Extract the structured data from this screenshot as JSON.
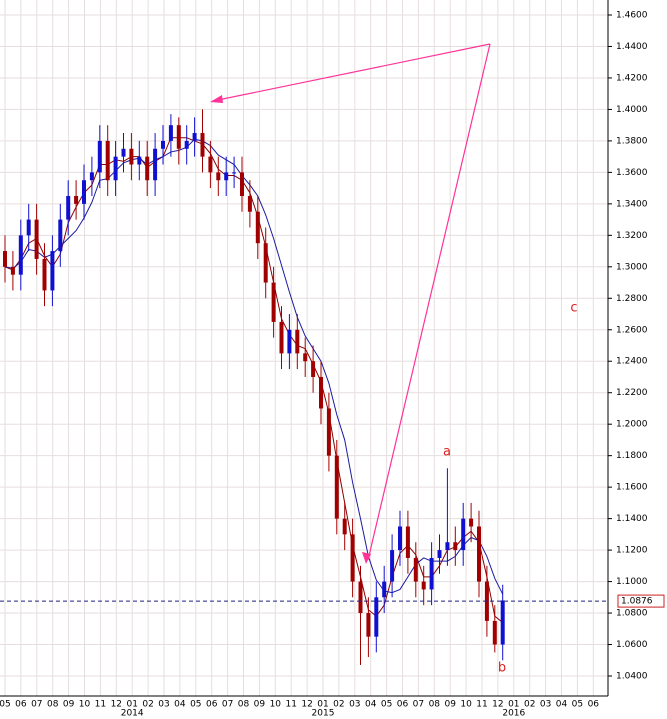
{
  "chart_data": {
    "type": "candlestick",
    "x_labels": [
      "05",
      "06",
      "07",
      "08",
      "09",
      "10",
      "11",
      "12",
      "01",
      "02",
      "03",
      "04",
      "05",
      "06",
      "07",
      "08",
      "09",
      "10",
      "11",
      "12",
      "01",
      "02",
      "03",
      "04",
      "05",
      "06",
      "07",
      "08",
      "09",
      "10",
      "11",
      "12",
      "01",
      "02",
      "03",
      "04",
      "05",
      "06"
    ],
    "year_labels": [
      "2014",
      "2015",
      "2016"
    ],
    "up_color": "#1010d0",
    "down_color": "#a00000",
    "open": [
      1.31,
      1.3,
      1.295,
      1.32,
      1.33,
      1.305,
      1.285,
      1.31,
      1.33,
      1.345,
      1.34,
      1.355,
      1.36,
      1.38,
      1.355,
      1.37,
      1.375,
      1.365,
      1.37,
      1.355,
      1.375,
      1.38,
      1.39,
      1.375,
      1.38,
      1.385,
      1.37,
      1.36,
      1.355,
      1.36,
      1.36,
      1.345,
      1.335,
      1.315,
      1.29,
      1.265,
      1.245,
      1.26,
      1.245,
      1.24,
      1.23,
      1.21,
      1.18,
      1.14,
      1.13,
      1.1,
      1.08,
      1.065,
      1.09,
      1.1,
      1.12,
      1.135,
      1.115,
      1.1,
      1.095,
      1.115,
      1.12,
      1.125,
      1.12,
      1.14,
      1.135,
      1.1,
      1.075,
      1.06
    ],
    "high": [
      1.32,
      1.31,
      1.33,
      1.34,
      1.34,
      1.315,
      1.32,
      1.34,
      1.355,
      1.355,
      1.365,
      1.37,
      1.39,
      1.39,
      1.38,
      1.385,
      1.385,
      1.38,
      1.38,
      1.385,
      1.39,
      1.397,
      1.395,
      1.39,
      1.395,
      1.4,
      1.38,
      1.37,
      1.37,
      1.37,
      1.37,
      1.355,
      1.345,
      1.325,
      1.3,
      1.275,
      1.27,
      1.27,
      1.255,
      1.25,
      1.24,
      1.22,
      1.19,
      1.15,
      1.14,
      1.11,
      1.09,
      1.1,
      1.11,
      1.13,
      1.145,
      1.145,
      1.125,
      1.11,
      1.125,
      1.13,
      1.172,
      1.135,
      1.15,
      1.15,
      1.145,
      1.11,
      1.085,
      1.098
    ],
    "low": [
      1.29,
      1.285,
      1.285,
      1.31,
      1.295,
      1.275,
      1.275,
      1.3,
      1.32,
      1.33,
      1.33,
      1.345,
      1.35,
      1.345,
      1.345,
      1.36,
      1.355,
      1.355,
      1.345,
      1.345,
      1.365,
      1.37,
      1.365,
      1.365,
      1.37,
      1.36,
      1.35,
      1.345,
      1.345,
      1.35,
      1.335,
      1.325,
      1.305,
      1.28,
      1.255,
      1.235,
      1.235,
      1.235,
      1.23,
      1.22,
      1.2,
      1.17,
      1.13,
      1.12,
      1.09,
      1.047,
      1.052,
      1.055,
      1.08,
      1.09,
      1.11,
      1.105,
      1.09,
      1.085,
      1.085,
      1.105,
      1.11,
      1.11,
      1.11,
      1.125,
      1.09,
      1.065,
      1.055,
      1.05
    ],
    "close": [
      1.3,
      1.295,
      1.32,
      1.33,
      1.305,
      1.285,
      1.31,
      1.33,
      1.345,
      1.34,
      1.355,
      1.36,
      1.38,
      1.355,
      1.37,
      1.375,
      1.365,
      1.37,
      1.355,
      1.375,
      1.38,
      1.39,
      1.375,
      1.38,
      1.385,
      1.37,
      1.36,
      1.355,
      1.36,
      1.36,
      1.345,
      1.335,
      1.315,
      1.29,
      1.265,
      1.245,
      1.26,
      1.245,
      1.24,
      1.23,
      1.21,
      1.18,
      1.14,
      1.13,
      1.1,
      1.08,
      1.065,
      1.09,
      1.1,
      1.12,
      1.135,
      1.115,
      1.1,
      1.095,
      1.115,
      1.12,
      1.125,
      1.12,
      1.14,
      1.135,
      1.1,
      1.075,
      1.06,
      1.088
    ],
    "series": [
      {
        "color": "#8b0000",
        "values": [
          1.3,
          1.298,
          1.305,
          1.315,
          1.318,
          1.307,
          1.3,
          1.308,
          1.328,
          1.338,
          1.347,
          1.352,
          1.365,
          1.365,
          1.368,
          1.367,
          1.37,
          1.37,
          1.363,
          1.367,
          1.37,
          1.382,
          1.382,
          1.382,
          1.38,
          1.378,
          1.372,
          1.362,
          1.358,
          1.358,
          1.355,
          1.347,
          1.332,
          1.313,
          1.29,
          1.267,
          1.257,
          1.25,
          1.248,
          1.238,
          1.227,
          1.207,
          1.177,
          1.15,
          1.123,
          1.103,
          1.082,
          1.078,
          1.085,
          1.103,
          1.118,
          1.123,
          1.117,
          1.103,
          1.103,
          1.11,
          1.12,
          1.122,
          1.128,
          1.132,
          1.125,
          1.103,
          1.078,
          1.074
        ]
      },
      {
        "color": "#1a1aa0",
        "values": [
          1.3,
          1.299,
          1.303,
          1.311,
          1.31,
          1.306,
          1.308,
          1.313,
          1.318,
          1.323,
          1.331,
          1.341,
          1.355,
          1.356,
          1.361,
          1.366,
          1.368,
          1.369,
          1.365,
          1.368,
          1.37,
          1.373,
          1.374,
          1.376,
          1.381,
          1.38,
          1.377,
          1.371,
          1.368,
          1.365,
          1.358,
          1.352,
          1.345,
          1.333,
          1.318,
          1.301,
          1.284,
          1.268,
          1.256,
          1.248,
          1.24,
          1.226,
          1.206,
          1.19,
          1.163,
          1.14,
          1.116,
          1.101,
          1.094,
          1.093,
          1.095,
          1.103,
          1.111,
          1.115,
          1.113,
          1.113,
          1.113,
          1.116,
          1.123,
          1.128,
          1.126,
          1.116,
          1.102,
          1.092
        ]
      }
    ],
    "ylim": [
      1.04,
      1.46
    ],
    "yticks": [
      {
        "value": 1.04,
        "label": "1.0400"
      },
      {
        "value": 1.06,
        "label": "1.0600"
      },
      {
        "value": 1.08,
        "label": "1.0800"
      },
      {
        "value": 1.1,
        "label": "1.1000"
      },
      {
        "value": 1.12,
        "label": "1.1200"
      },
      {
        "value": 1.14,
        "label": "1.1400"
      },
      {
        "value": 1.16,
        "label": "1.1600"
      },
      {
        "value": 1.18,
        "label": "1.1800"
      },
      {
        "value": 1.2,
        "label": "1.2000"
      },
      {
        "value": 1.22,
        "label": "1.2200"
      },
      {
        "value": 1.24,
        "label": "1.2400"
      },
      {
        "value": 1.26,
        "label": "1.2600"
      },
      {
        "value": 1.28,
        "label": "1.2800"
      },
      {
        "value": 1.3,
        "label": "1.3000"
      },
      {
        "value": 1.32,
        "label": "1.3200"
      },
      {
        "value": 1.34,
        "label": "1.3400"
      },
      {
        "value": 1.36,
        "label": "1.3600"
      },
      {
        "value": 1.38,
        "label": "1.3800"
      },
      {
        "value": 1.4,
        "label": "1.4000"
      },
      {
        "value": 1.42,
        "label": "1.4200"
      },
      {
        "value": 1.44,
        "label": "1.4400"
      },
      {
        "value": 1.46,
        "label": "1.4600"
      }
    ],
    "current_price": {
      "value": 1.0876,
      "label": "1.0876"
    },
    "annotations": [
      "a",
      "b",
      "c"
    ],
    "grid": true
  }
}
